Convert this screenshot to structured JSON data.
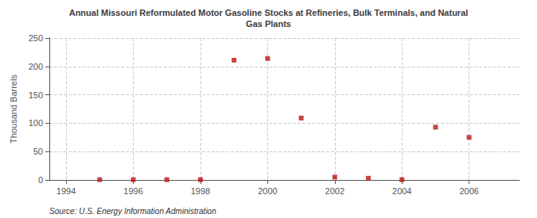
{
  "chart_data": {
    "type": "scatter",
    "title": "Annual Missouri Reformulated Motor Gasoline Stocks at Refineries, Bulk Terminals, and Natural\nGas Plants",
    "ylabel": "Thousand Barrels",
    "annotations": [
      "Source: U.S. Energy Information Administration"
    ],
    "x": [
      1995,
      1996,
      1997,
      1998,
      1999,
      2000,
      2001,
      2002,
      2003,
      2004,
      2005,
      2006
    ],
    "values": [
      0.5,
      0.5,
      0.5,
      0.5,
      211,
      214,
      109,
      5,
      3,
      0.5,
      93,
      75
    ],
    "color": "#bb1111",
    "marker": "square",
    "xlim": [
      1993.5,
      2007.5
    ],
    "xticks": [
      1994,
      1996,
      1998,
      2000,
      2002,
      2004,
      2006
    ],
    "ylim": [
      0,
      250
    ],
    "yticks": [
      0,
      50,
      100,
      150,
      200,
      250
    ],
    "grid": true
  }
}
